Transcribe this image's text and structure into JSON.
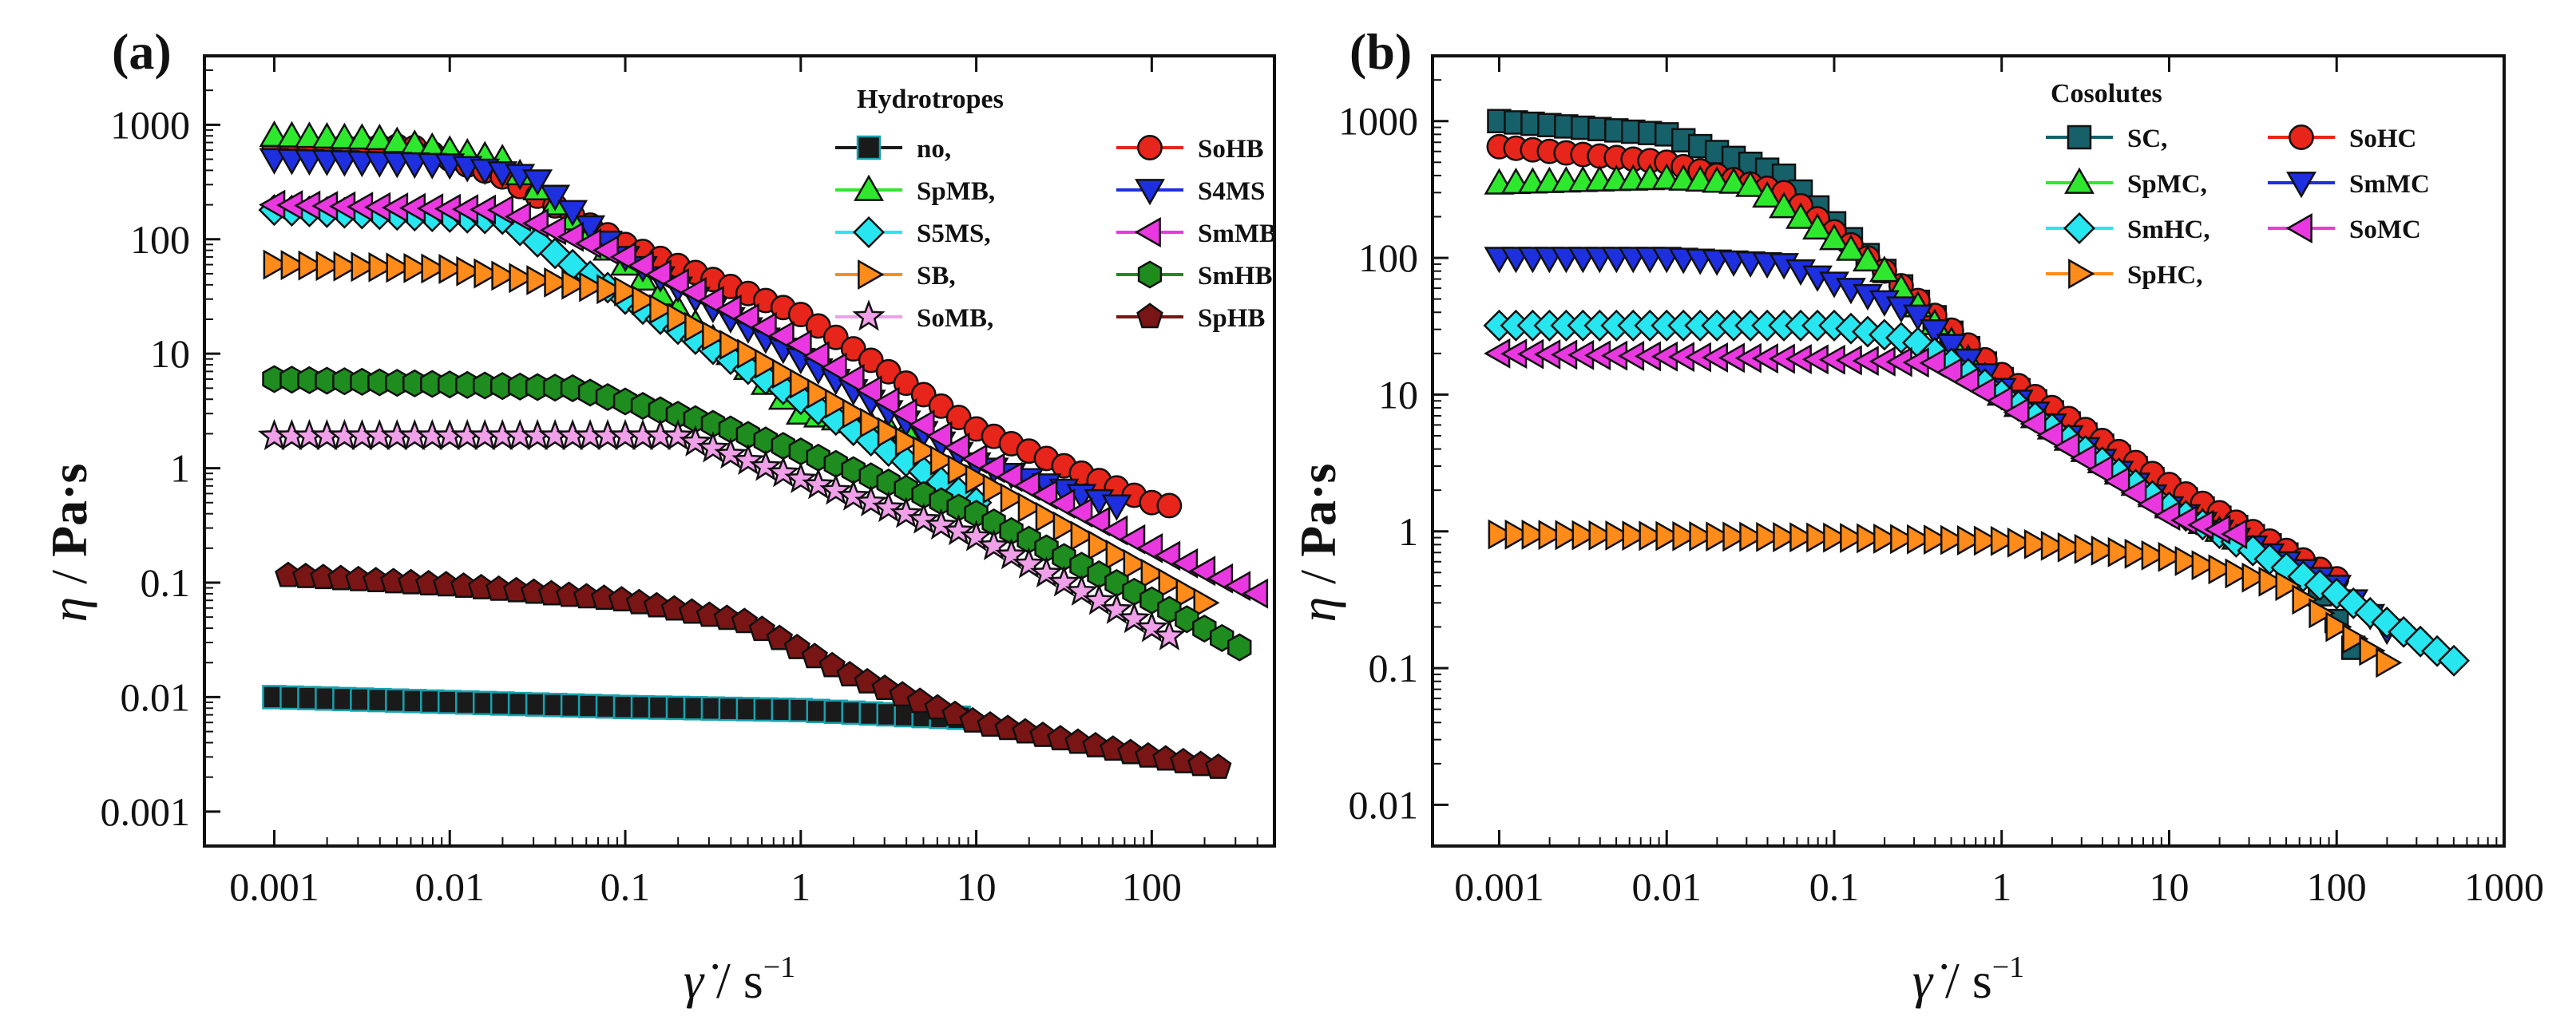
{
  "chart_data": [
    {
      "type": "scatter",
      "panel_label": "(a)",
      "xscale": "log",
      "yscale": "log",
      "xlim": [
        0.0004,
        500
      ],
      "ylim": [
        0.0005,
        4000
      ],
      "xticks": [
        0.001,
        0.01,
        0.1,
        1,
        10,
        100
      ],
      "xtick_labels": [
        "0.001",
        "0.01",
        "0.1",
        "1",
        "10",
        "100"
      ],
      "yticks": [
        0.001,
        0.01,
        0.1,
        1,
        10,
        100,
        1000
      ],
      "ytick_labels": [
        "0.001",
        "0.01",
        "0.1",
        "1",
        "10",
        "100",
        "1000"
      ],
      "legend_title": "Hydrotropes",
      "legend_position": "top-right",
      "series": [
        {
          "name": "no,",
          "marker": "square",
          "color": "#1a1a1a",
          "edge": "#17a2b0",
          "x_range": [
            0.001,
            8
          ],
          "points": [
            [
              0.001,
              0.01
            ],
            [
              0.1,
              0.0082
            ],
            [
              1,
              0.0077
            ],
            [
              8,
              0.0066
            ]
          ]
        },
        {
          "name": "SoHB",
          "marker": "circle",
          "color": "#e8251b",
          "edge": "#111111",
          "x_range": [
            0.001,
            150
          ],
          "points": [
            [
              0.001,
              650
            ],
            [
              0.006,
              650
            ],
            [
              0.02,
              350
            ],
            [
              0.1,
              90
            ],
            [
              1,
              22
            ],
            [
              10,
              2.2
            ],
            [
              100,
              0.5
            ],
            [
              150,
              0.45
            ]
          ]
        },
        {
          "name": "SpMB,",
          "marker": "triangle-up",
          "color": "#2ee82e",
          "edge": "#111111",
          "x_range": [
            0.001,
            5
          ],
          "points": [
            [
              0.001,
              800
            ],
            [
              0.004,
              750
            ],
            [
              0.02,
              500
            ],
            [
              0.1,
              60
            ],
            [
              1,
              3
            ],
            [
              5,
              2
            ]
          ]
        },
        {
          "name": "S4MS",
          "marker": "triangle-down",
          "color": "#1e2fe0",
          "edge": "#111111",
          "x_range": [
            0.001,
            70
          ],
          "points": [
            [
              0.001,
              500
            ],
            [
              0.01,
              450
            ],
            [
              0.03,
              350
            ],
            [
              0.1,
              70
            ],
            [
              1,
              9
            ],
            [
              10,
              1.1
            ],
            [
              70,
              0.45
            ]
          ]
        },
        {
          "name": "S5MS,",
          "marker": "diamond",
          "color": "#27e6f0",
          "edge": "#111111",
          "x_range": [
            0.001,
            10
          ],
          "points": [
            [
              0.001,
              180
            ],
            [
              0.02,
              150
            ],
            [
              0.1,
              30
            ],
            [
              1,
              4
            ],
            [
              10,
              0.5
            ]
          ]
        },
        {
          "name": "SmMB",
          "marker": "triangle-left",
          "color": "#ea38e0",
          "edge": "#111111",
          "x_range": [
            0.001,
            400
          ],
          "points": [
            [
              0.001,
              200
            ],
            [
              0.02,
              180
            ],
            [
              0.1,
              70
            ],
            [
              1,
              12
            ],
            [
              10,
              1.2
            ],
            [
              100,
              0.2
            ],
            [
              400,
              0.08
            ]
          ]
        },
        {
          "name": "SB,",
          "marker": "triangle-right",
          "color": "#ff8c1a",
          "edge": "#111111",
          "x_range": [
            0.001,
            250
          ],
          "points": [
            [
              0.001,
              60
            ],
            [
              0.01,
              55
            ],
            [
              0.1,
              35
            ],
            [
              0.5,
              10
            ],
            [
              2,
              3
            ],
            [
              10,
              0.8
            ],
            [
              100,
              0.12
            ],
            [
              250,
              0.055
            ]
          ]
        },
        {
          "name": "SmHB",
          "marker": "hexagon",
          "color": "#1f8c1f",
          "edge": "#111111",
          "x_range": [
            0.001,
            350
          ],
          "points": [
            [
              0.001,
              6
            ],
            [
              0.05,
              5
            ],
            [
              0.3,
              2.5
            ],
            [
              1,
              1.4
            ],
            [
              10,
              0.4
            ],
            [
              100,
              0.07
            ],
            [
              350,
              0.025
            ]
          ]
        },
        {
          "name": "SoMB,",
          "marker": "star",
          "color": "#f0a0e8",
          "edge": "#111111",
          "x_range": [
            0.001,
            150
          ],
          "points": [
            [
              0.001,
              1.9
            ],
            [
              0.2,
              1.9
            ],
            [
              1,
              0.8
            ],
            [
              10,
              0.25
            ],
            [
              100,
              0.04
            ],
            [
              150,
              0.03
            ]
          ]
        },
        {
          "name": "SpHB",
          "marker": "pentagon",
          "color": "#7a1515",
          "edge": "#111111",
          "x_range": [
            0.0012,
            300
          ],
          "points": [
            [
              0.0012,
              0.115
            ],
            [
              0.01,
              0.095
            ],
            [
              0.1,
              0.07
            ],
            [
              0.5,
              0.045
            ],
            [
              2,
              0.015
            ],
            [
              10,
              0.006
            ],
            [
              100,
              0.003
            ],
            [
              300,
              0.0023
            ]
          ]
        }
      ]
    },
    {
      "type": "scatter",
      "panel_label": "(b)",
      "xscale": "log",
      "yscale": "log",
      "xlim": [
        0.0004,
        1000
      ],
      "ylim": [
        0.005,
        3000
      ],
      "xticks": [
        0.001,
        0.01,
        0.1,
        1,
        10,
        100,
        1000
      ],
      "xtick_labels": [
        "0.001",
        "0.01",
        "0.1",
        "1",
        "10",
        "100",
        "1000"
      ],
      "yticks": [
        0.01,
        0.1,
        1,
        10,
        100,
        1000
      ],
      "ytick_labels": [
        "0.01",
        "0.1",
        "1",
        "10",
        "100",
        "1000"
      ],
      "legend_title": "Cosolutes",
      "legend_position": "top-right",
      "series": [
        {
          "name": "SC,",
          "marker": "square",
          "color": "#16606a",
          "edge": "#111111",
          "x_range": [
            0.001,
            150
          ],
          "points": [
            [
              0.001,
              1000
            ],
            [
              0.01,
              800
            ],
            [
              0.05,
              400
            ],
            [
              0.2,
              80
            ],
            [
              1,
              13
            ],
            [
              10,
              2
            ],
            [
              60,
              0.6
            ],
            [
              150,
              0.1
            ]
          ]
        },
        {
          "name": "SoHC",
          "marker": "circle",
          "color": "#e8251b",
          "edge": "#111111",
          "x_range": [
            0.001,
            100
          ],
          "points": [
            [
              0.001,
              650
            ],
            [
              0.01,
              500
            ],
            [
              0.05,
              300
            ],
            [
              0.2,
              80
            ],
            [
              1,
              14
            ],
            [
              10,
              2.2
            ],
            [
              100,
              0.45
            ]
          ]
        },
        {
          "name": "SpMC,",
          "marker": "triangle-up",
          "color": "#2ee82e",
          "edge": "#111111",
          "x_range": [
            0.001,
            30
          ],
          "points": [
            [
              0.001,
              350
            ],
            [
              0.01,
              380
            ],
            [
              0.03,
              350
            ],
            [
              0.2,
              80
            ],
            [
              1,
              10
            ],
            [
              10,
              1.5
            ],
            [
              30,
              0.8
            ]
          ]
        },
        {
          "name": "SmMC",
          "marker": "triangle-down",
          "color": "#1e2fe0",
          "edge": "#111111",
          "x_range": [
            0.001,
            250
          ],
          "points": [
            [
              0.001,
              100
            ],
            [
              0.01,
              100
            ],
            [
              0.05,
              90
            ],
            [
              0.3,
              40
            ],
            [
              1,
              11
            ],
            [
              10,
              1.5
            ],
            [
              100,
              0.4
            ],
            [
              250,
              0.15
            ]
          ]
        },
        {
          "name": "SmHC,",
          "marker": "diamond",
          "color": "#27e6f0",
          "edge": "#111111",
          "x_range": [
            0.001,
            600
          ],
          "points": [
            [
              0.001,
              32
            ],
            [
              0.1,
              32
            ],
            [
              0.3,
              25
            ],
            [
              1,
              10
            ],
            [
              10,
              1.5
            ],
            [
              100,
              0.35
            ],
            [
              600,
              0.1
            ]
          ]
        },
        {
          "name": "SoMC",
          "marker": "triangle-left",
          "color": "#ea38e0",
          "edge": "#111111",
          "x_range": [
            0.001,
            30
          ],
          "points": [
            [
              0.001,
              20
            ],
            [
              0.1,
              18
            ],
            [
              0.4,
              17
            ],
            [
              1,
              9
            ],
            [
              10,
              1.3
            ],
            [
              30,
              0.9
            ]
          ]
        },
        {
          "name": "SpHC,",
          "marker": "triangle-right",
          "color": "#ff8c1a",
          "edge": "#111111",
          "x_range": [
            0.001,
            250
          ],
          "points": [
            [
              0.001,
              0.95
            ],
            [
              0.1,
              0.9
            ],
            [
              1,
              0.85
            ],
            [
              10,
              0.65
            ],
            [
              50,
              0.4
            ],
            [
              100,
              0.2
            ],
            [
              250,
              0.09
            ]
          ]
        }
      ]
    }
  ],
  "axes": {
    "ylabel_sym": "η",
    "ylabel_sep": " / ",
    "ylabel_unit": "Pa·s",
    "xlabel_sym": "γ̇",
    "xlabel_sep": " / ",
    "xlabel_unit": "s",
    "xlabel_exp": "−1"
  }
}
